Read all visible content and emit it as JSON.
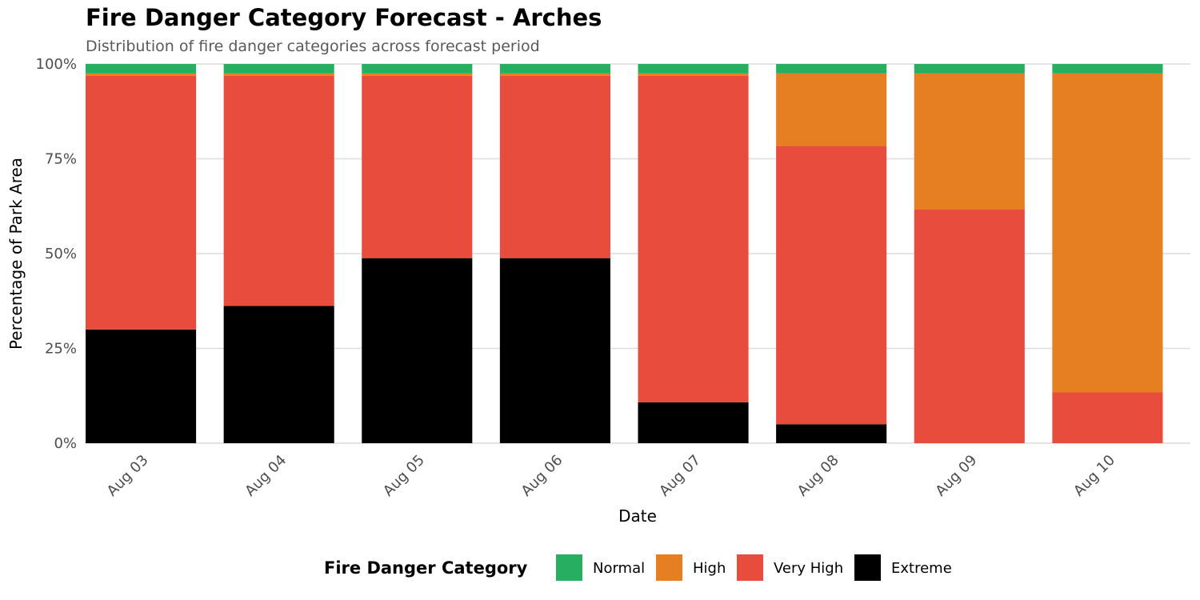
{
  "chart_data": {
    "type": "bar",
    "stacked": true,
    "percent": true,
    "title": "Fire Danger Category Forecast - Arches",
    "subtitle": "Distribution of fire danger categories across forecast period",
    "xlabel": "Date",
    "ylabel": "Percentage of Park Area",
    "ylim": [
      0,
      100
    ],
    "yticks": [
      0,
      25,
      50,
      75,
      100
    ],
    "ytick_labels": [
      "0%",
      "25%",
      "50%",
      "75%",
      "100%"
    ],
    "grid": true,
    "legend": {
      "title": "Fire Danger Category",
      "position": "bottom"
    },
    "categories": [
      "Aug 03",
      "Aug 04",
      "Aug 05",
      "Aug 06",
      "Aug 07",
      "Aug 08",
      "Aug 09",
      "Aug 10"
    ],
    "series": [
      {
        "name": "Extreme",
        "color": "#000000",
        "values": [
          30,
          36.2,
          48.8,
          48.8,
          10.8,
          5,
          0,
          0
        ]
      },
      {
        "name": "Very High",
        "color": "#E74C3C",
        "values": [
          66.9,
          60.7,
          48.1,
          48.1,
          86.1,
          73.4,
          61.6,
          13.4
        ]
      },
      {
        "name": "High",
        "color": "#E67E22",
        "values": [
          0.6,
          0.6,
          0.6,
          0.6,
          0.6,
          19.1,
          35.9,
          84.1
        ]
      },
      {
        "name": "Normal",
        "color": "#27AE60",
        "values": [
          2.5,
          2.5,
          2.5,
          2.5,
          2.5,
          2.5,
          2.5,
          2.5
        ]
      }
    ],
    "legend_order": [
      "Normal",
      "High",
      "Very High",
      "Extreme"
    ]
  }
}
